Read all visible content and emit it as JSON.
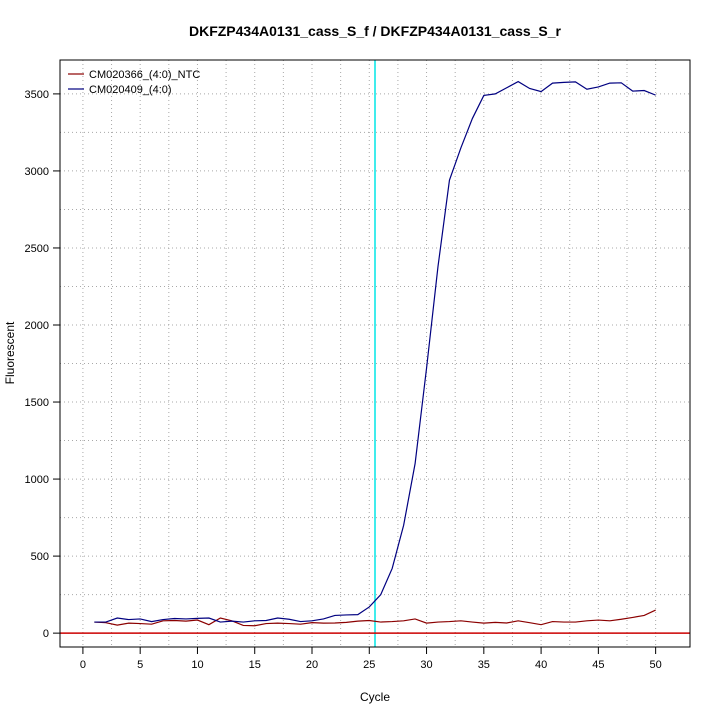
{
  "chart_data": {
    "type": "line",
    "title": "DKFZP434A0131_cass_S_f / DKFZP434A0131_cass_S_r",
    "xlabel": "Cycle",
    "ylabel": "Fluorescent",
    "xlim": [
      -2,
      53
    ],
    "ylim": [
      -90,
      3720
    ],
    "x_ticks": [
      0,
      5,
      10,
      15,
      20,
      25,
      30,
      35,
      40,
      45,
      50
    ],
    "y_ticks": [
      0,
      500,
      1000,
      1500,
      2000,
      2500,
      3000,
      3500
    ],
    "grid": true,
    "legend_position": "top-left",
    "threshold_cycle": 25.5,
    "threshold_color": "#00e5e5",
    "baseline_value": 0,
    "baseline_color": "#cc0000",
    "series": [
      {
        "name": "CM020366_(4:0)_NTC",
        "color": "#8b0000",
        "x": [
          1,
          2,
          3,
          4,
          5,
          6,
          7,
          8,
          9,
          10,
          11,
          12,
          13,
          14,
          15,
          16,
          17,
          18,
          19,
          20,
          21,
          22,
          23,
          24,
          25,
          26,
          27,
          28,
          29,
          30,
          31,
          32,
          33,
          34,
          35,
          36,
          37,
          38,
          39,
          40,
          41,
          42,
          43,
          44,
          45,
          46,
          47,
          48,
          49,
          50
        ],
        "y": [
          72,
          68,
          52,
          65,
          62,
          58,
          80,
          82,
          78,
          85,
          55,
          98,
          80,
          50,
          48,
          62,
          65,
          62,
          58,
          68,
          65,
          66,
          70,
          78,
          82,
          72,
          75,
          80,
          92,
          65,
          72,
          75,
          80,
          72,
          65,
          70,
          66,
          80,
          68,
          55,
          75,
          72,
          72,
          80,
          85,
          80,
          90,
          102,
          115,
          150
        ]
      },
      {
        "name": "CM020409_(4:0)",
        "color": "#000080",
        "x": [
          1,
          2,
          3,
          4,
          5,
          6,
          7,
          8,
          9,
          10,
          11,
          12,
          13,
          14,
          15,
          16,
          17,
          18,
          19,
          20,
          21,
          22,
          23,
          24,
          25,
          26,
          27,
          28,
          29,
          30,
          31,
          32,
          33,
          34,
          35,
          36,
          37,
          38,
          39,
          40,
          41,
          42,
          43,
          44,
          45,
          46,
          47,
          48,
          49,
          50
        ],
        "y": [
          72,
          72,
          98,
          88,
          92,
          75,
          88,
          95,
          92,
          96,
          98,
          72,
          78,
          72,
          80,
          82,
          98,
          90,
          75,
          80,
          92,
          115,
          118,
          120,
          170,
          250,
          420,
          700,
          1100,
          1720,
          2380,
          2940,
          3150,
          3340,
          3490,
          3500,
          3540,
          3580,
          3535,
          3515,
          3570,
          3575,
          3578,
          3530,
          3545,
          3570,
          3572,
          3518,
          3522,
          3492
        ]
      }
    ]
  }
}
